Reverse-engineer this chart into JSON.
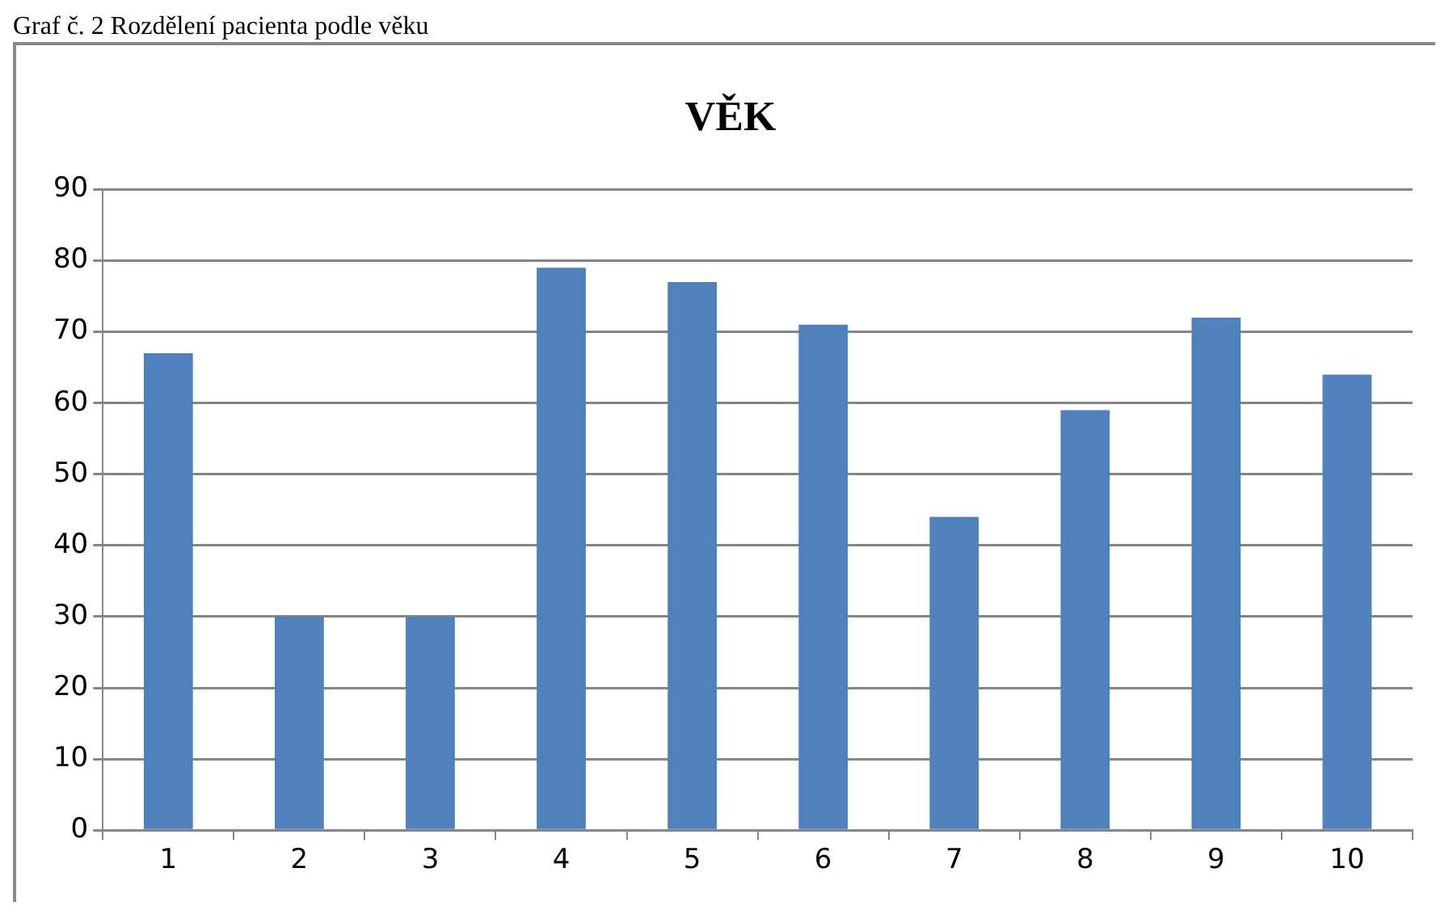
{
  "chart_data": {
    "type": "bar",
    "title": "VĚK",
    "annotations": [
      "Graf č. 2 Rozdělení pacienta podle věku"
    ],
    "categories": [
      "1",
      "2",
      "3",
      "4",
      "5",
      "6",
      "7",
      "8",
      "9",
      "10"
    ],
    "values": [
      67,
      30,
      30,
      79,
      77,
      71,
      44,
      59,
      72,
      64
    ],
    "color": "#4f81bd",
    "ylim": [
      0,
      90
    ],
    "yticks": [
      0,
      10,
      20,
      30,
      40,
      50,
      60,
      70,
      80,
      90
    ],
    "grid": "y",
    "legend": false
  }
}
